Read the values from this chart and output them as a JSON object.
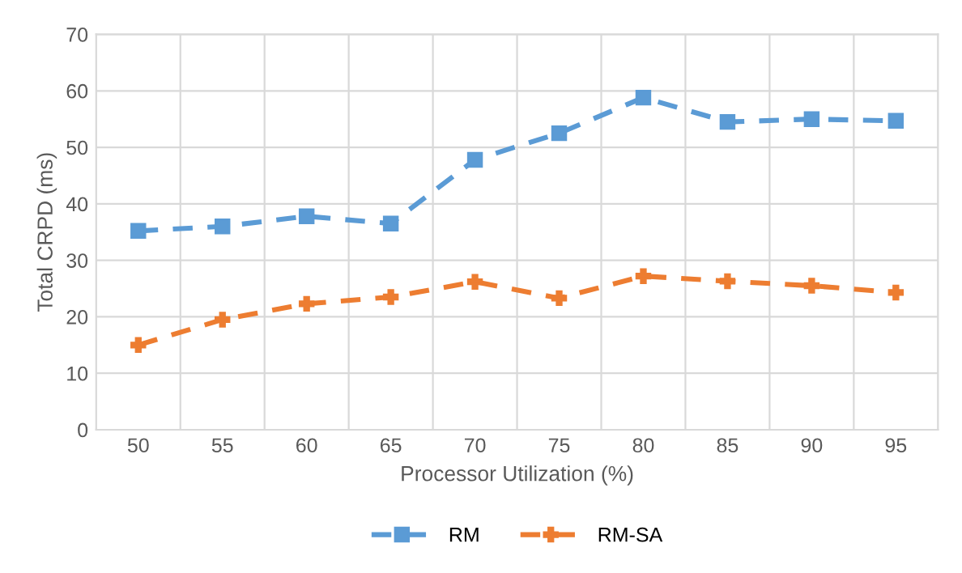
{
  "chart_data": {
    "type": "line",
    "xlabel": "Processor Utilization (%)",
    "ylabel": "Total CRPD (ms)",
    "categories": [
      "50",
      "55",
      "60",
      "65",
      "70",
      "75",
      "80",
      "85",
      "90",
      "95"
    ],
    "series": [
      {
        "name": "RM",
        "color": "#5b9bd5",
        "marker": "square",
        "line_style": "dashed",
        "values": [
          35.2,
          36,
          37.8,
          36.5,
          47.8,
          52.5,
          58.8,
          54.5,
          55,
          54.7
        ]
      },
      {
        "name": "RM-SA",
        "color": "#ed7d31",
        "marker": "cross",
        "line_style": "dashed",
        "values": [
          15,
          19.5,
          22.3,
          23.5,
          26.2,
          23.3,
          27.2,
          26.3,
          25.5,
          24.3
        ]
      }
    ],
    "ylim": [
      0,
      70
    ],
    "yticks": [
      0,
      10,
      20,
      30,
      40,
      50,
      60,
      70
    ],
    "grid": true,
    "legend": "bottom"
  }
}
